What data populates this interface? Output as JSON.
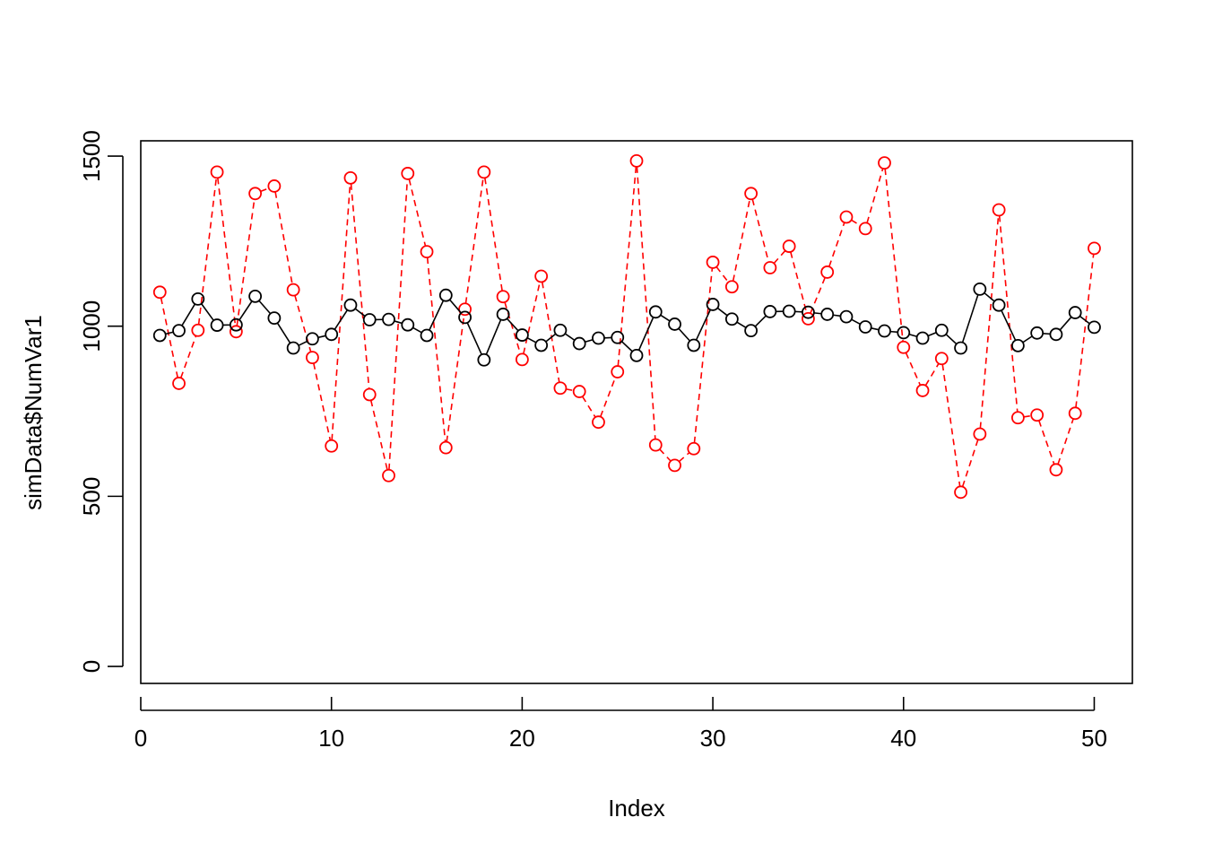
{
  "chart_data": {
    "type": "line",
    "xlabel": "Index",
    "ylabel": "simData$NumVar1",
    "x": [
      1,
      2,
      3,
      4,
      5,
      6,
      7,
      8,
      9,
      10,
      11,
      12,
      13,
      14,
      15,
      16,
      17,
      18,
      19,
      20,
      21,
      22,
      23,
      24,
      25,
      26,
      27,
      28,
      29,
      30,
      31,
      32,
      33,
      34,
      35,
      36,
      37,
      38,
      39,
      40,
      41,
      42,
      43,
      44,
      45,
      46,
      47,
      48,
      49,
      50
    ],
    "xlim": [
      0,
      52
    ],
    "ylim": [
      -50,
      1545
    ],
    "x_ticks": [
      0,
      10,
      20,
      30,
      40,
      50
    ],
    "x_tick_labels": [
      "0",
      "10",
      "20",
      "30",
      "40",
      "50"
    ],
    "y_ticks": [
      0,
      500,
      1000,
      1500
    ],
    "y_tick_labels": [
      "0",
      "500",
      "1000",
      "1500"
    ],
    "grid": false,
    "legend": "none",
    "series": [
      {
        "color": "#ff0000",
        "line_style": "dashed",
        "marker": "open-circle",
        "values": [
          1100,
          832,
          988,
          1453,
          984,
          1390,
          1412,
          1107,
          908,
          648,
          1436,
          799,
          561,
          1449,
          1219,
          643,
          1050,
          1453,
          1087,
          902,
          1147,
          818,
          808,
          718,
          866,
          1486,
          651,
          591,
          640,
          1188,
          1116,
          1390,
          1172,
          1235,
          1022,
          1159,
          1321,
          1287,
          1480,
          938,
          811,
          905,
          512,
          683,
          1342,
          731,
          739,
          578,
          744,
          1229
        ]
      },
      {
        "color": "#000000",
        "line_style": "solid",
        "marker": "open-circle",
        "values": [
          973,
          987,
          1080,
          1003,
          1004,
          1088,
          1024,
          936,
          963,
          976,
          1062,
          1019,
          1020,
          1004,
          973,
          1091,
          1026,
          901,
          1035,
          974,
          944,
          988,
          949,
          965,
          967,
          914,
          1042,
          1006,
          944,
          1064,
          1021,
          987,
          1043,
          1044,
          1041,
          1035,
          1028,
          998,
          986,
          981,
          965,
          988,
          936,
          1109,
          1062,
          943,
          980,
          976,
          1040,
          997
        ]
      }
    ]
  }
}
